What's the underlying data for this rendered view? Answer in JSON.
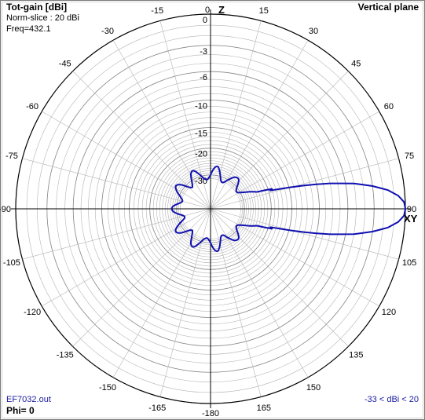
{
  "header": {
    "title": "Tot-gain [dBi]",
    "norm_slice": "Norm-slice : 20 dBi",
    "freq": "Freq=432.1",
    "plane": "Vertical plane"
  },
  "footer": {
    "file": "EF7032.out",
    "phi": "Phi= 0",
    "range": "-33 < dBi < 20"
  },
  "axis_labels": {
    "z": "Z",
    "xy": "XY"
  },
  "colors": {
    "pattern": "#1010b0",
    "grid": "#b4b4b4",
    "axis": "#000000",
    "footer_text": "#1a1aa0"
  },
  "chart_data": {
    "type": "polar",
    "orientation": "vertical plane, 0° at top (Z), 90° at right (XY)",
    "angle_labels": [
      "0",
      "15",
      "30",
      "45",
      "60",
      "75",
      "90",
      "105",
      "120",
      "135",
      "150",
      "165",
      "-180",
      "-165",
      "-150",
      "-135",
      "-120",
      "-105",
      "-90",
      "-75",
      "-60",
      "-45",
      "-30",
      "-15"
    ],
    "radial_labels": [
      "0",
      "-3",
      "-6",
      "-10",
      "-15",
      "-20",
      "-30"
    ],
    "radial_unit": "dB relative to 20 dBi",
    "series": [
      {
        "values_note": "main lobe toward 90 deg (XY direction), small side lobes near center",
        "angles_deg": [
          0,
          10,
          20,
          30,
          40,
          50,
          60,
          65,
          70,
          72,
          74,
          76,
          78,
          80,
          82,
          84,
          86,
          88,
          90,
          92,
          94,
          96,
          98,
          100,
          102,
          104,
          106,
          108,
          110,
          115,
          120,
          130,
          140,
          150,
          160,
          170,
          180,
          190,
          200,
          210,
          220,
          230,
          240,
          250,
          260,
          270,
          280,
          290,
          300,
          310,
          320,
          330,
          340,
          350
        ],
        "gain_db": [
          -30,
          -29,
          -30,
          -29,
          -30,
          -29,
          -28,
          -27,
          -26,
          -22,
          -17,
          -12,
          -8,
          -5,
          -3,
          -1.5,
          -0.6,
          -0.1,
          0,
          -0.1,
          -0.6,
          -1.5,
          -3,
          -5,
          -8,
          -12,
          -17,
          -22,
          -26,
          -27,
          -28,
          -29,
          -30,
          -29,
          -30,
          -29,
          -30,
          -29,
          -30,
          -29,
          -30,
          -29,
          -30,
          -31,
          -30,
          -31,
          -30,
          -29,
          -30,
          -29,
          -30,
          -29,
          -30,
          -29
        ]
      }
    ]
  }
}
